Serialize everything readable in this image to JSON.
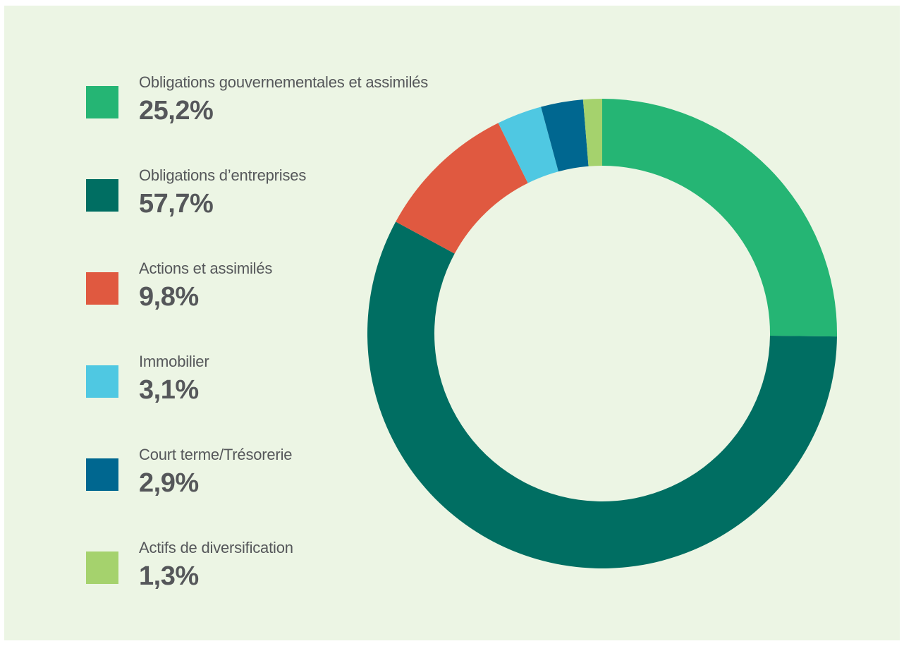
{
  "chart_data": {
    "type": "pie",
    "subtype": "donut",
    "categories": [
      "Obligations gouvernementales et assimilés",
      "Obligations d’entreprises",
      "Actions et assimilés",
      "Immobilier",
      "Court terme/Trésorerie",
      "Actifs de diversification"
    ],
    "values": [
      25.2,
      57.7,
      9.8,
      3.1,
      2.9,
      1.3
    ],
    "value_labels": [
      "25,2%",
      "57,7%",
      "9,8%",
      "3,1%",
      "2,9%",
      "1,3%"
    ],
    "colors": [
      "#25b574",
      "#006e62",
      "#e05940",
      "#4fc8e2",
      "#006790",
      "#a5d26d"
    ],
    "legend_position": "left",
    "start_angle": "top",
    "direction": "clockwise"
  },
  "background_color": "#ecf5e4",
  "text_color": "#55575a"
}
